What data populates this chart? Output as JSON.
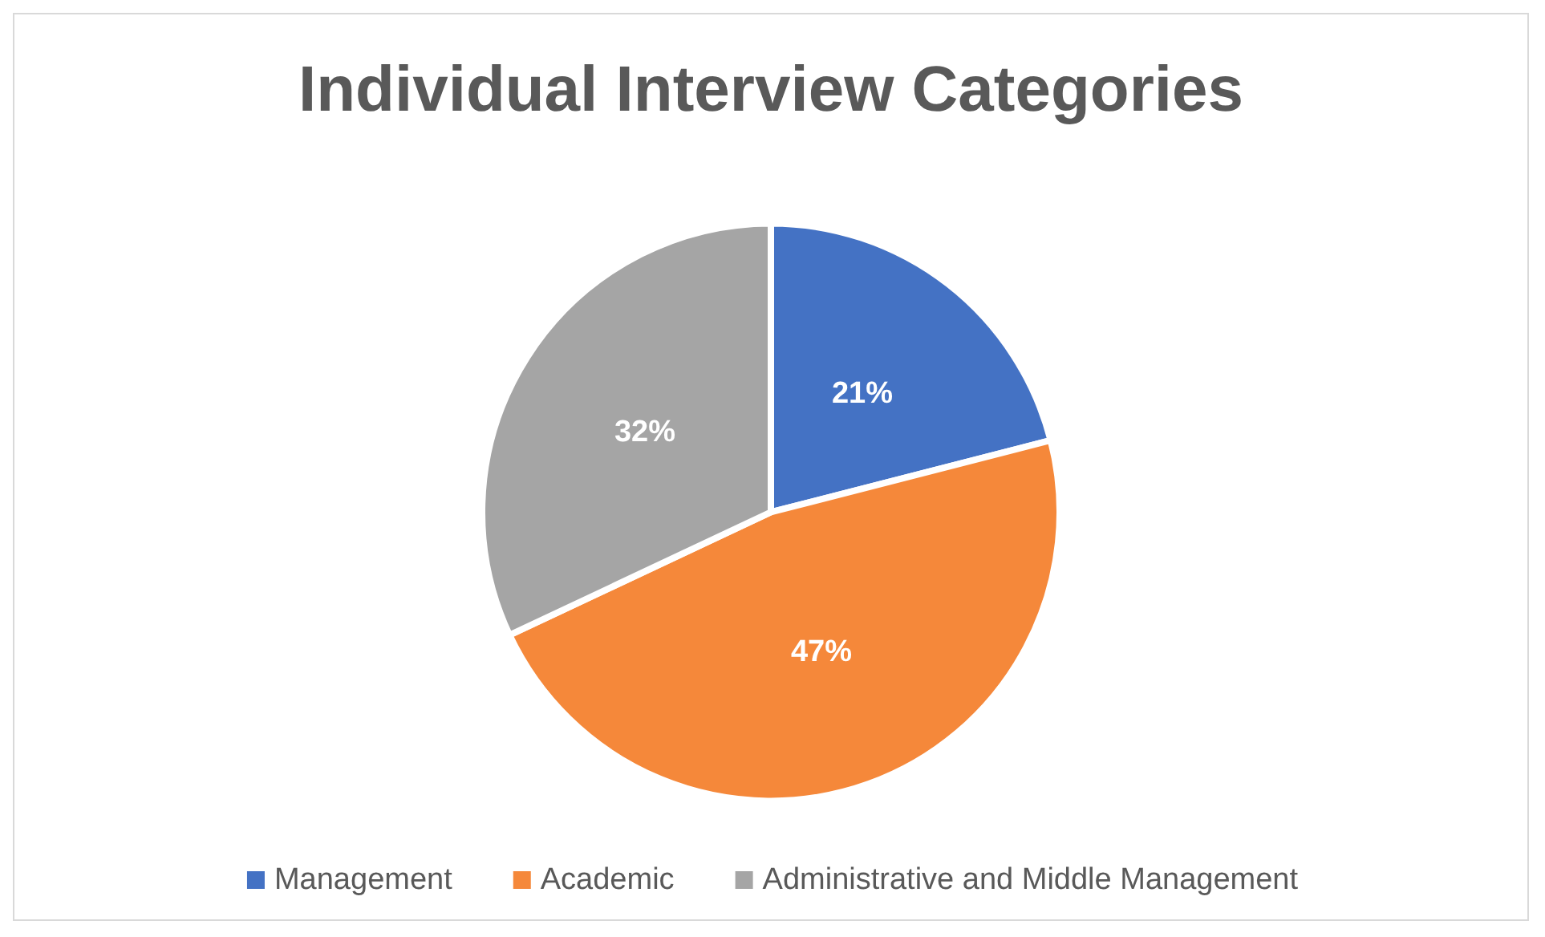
{
  "chart_data": {
    "type": "pie",
    "title": "Individual Interview Categories",
    "categories": [
      "Management",
      "Academic",
      "Administrative and Middle Management"
    ],
    "values": [
      21,
      47,
      32
    ],
    "value_labels": [
      "21%",
      "47%",
      "32%"
    ],
    "colors": [
      "#4472c4",
      "#f5883a",
      "#a5a5a5"
    ],
    "legend": "bottom"
  }
}
